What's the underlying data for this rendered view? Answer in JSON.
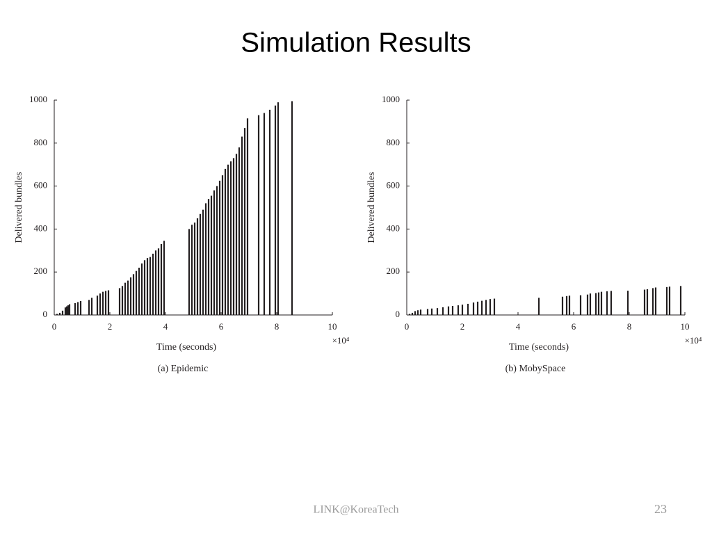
{
  "slide": {
    "title": "Simulation Results",
    "footer": "LINK@KoreaTech",
    "page_number": "23"
  },
  "chart_data": [
    {
      "type": "stem",
      "caption": "(a) Epidemic",
      "x_label": "Time (seconds)",
      "y_label": "Delivered bundles",
      "x_multiplier": "×10⁴",
      "color": "#231f20",
      "xlim": [
        0,
        10
      ],
      "ylim": [
        0,
        1000
      ],
      "xticks": [
        0,
        2,
        4,
        6,
        8,
        10
      ],
      "yticks": [
        0,
        200,
        400,
        600,
        800,
        1000
      ],
      "x": [
        0.1,
        0.2,
        0.3,
        0.4,
        0.45,
        0.5,
        0.55,
        0.75,
        0.85,
        0.95,
        1.25,
        1.35,
        1.55,
        1.65,
        1.75,
        1.85,
        1.95,
        2.35,
        2.45,
        2.55,
        2.65,
        2.75,
        2.85,
        2.95,
        3.05,
        3.15,
        3.25,
        3.35,
        3.45,
        3.55,
        3.65,
        3.75,
        3.85,
        3.95,
        4.85,
        4.95,
        5.05,
        5.15,
        5.25,
        5.35,
        5.45,
        5.55,
        5.65,
        5.75,
        5.85,
        5.95,
        6.05,
        6.15,
        6.25,
        6.35,
        6.45,
        6.55,
        6.65,
        6.75,
        6.85,
        6.95,
        7.35,
        7.55,
        7.75,
        7.95,
        8.05,
        8.55
      ],
      "values": [
        5,
        10,
        20,
        35,
        40,
        45,
        50,
        55,
        60,
        65,
        70,
        80,
        90,
        100,
        108,
        112,
        115,
        125,
        135,
        150,
        160,
        175,
        190,
        205,
        220,
        240,
        255,
        265,
        270,
        285,
        300,
        310,
        330,
        345,
        400,
        420,
        430,
        450,
        470,
        490,
        520,
        540,
        555,
        580,
        600,
        625,
        650,
        680,
        700,
        715,
        730,
        750,
        780,
        830,
        870,
        915,
        930,
        940,
        955,
        975,
        990,
        995
      ]
    },
    {
      "type": "stem",
      "caption": "(b) MobySpace",
      "x_label": "Time (seconds)",
      "y_label": "Delivered bundles",
      "x_multiplier": "×10⁴",
      "color": "#231f20",
      "xlim": [
        0,
        10
      ],
      "ylim": [
        0,
        1000
      ],
      "xticks": [
        0,
        2,
        4,
        6,
        8,
        10
      ],
      "yticks": [
        0,
        200,
        400,
        600,
        800,
        1000
      ],
      "x": [
        0.1,
        0.2,
        0.3,
        0.4,
        0.5,
        0.75,
        0.9,
        1.1,
        1.3,
        1.5,
        1.65,
        1.85,
        2.0,
        2.2,
        2.4,
        2.55,
        2.7,
        2.85,
        3.0,
        3.15,
        4.75,
        5.6,
        5.75,
        5.85,
        6.25,
        6.5,
        6.6,
        6.8,
        6.9,
        7.0,
        7.2,
        7.35,
        7.95,
        8.55,
        8.65,
        8.85,
        8.95,
        9.35,
        9.45,
        9.85
      ],
      "values": [
        5,
        10,
        18,
        22,
        25,
        28,
        30,
        32,
        36,
        40,
        42,
        45,
        48,
        52,
        58,
        62,
        66,
        70,
        74,
        76,
        80,
        85,
        88,
        90,
        92,
        95,
        100,
        102,
        105,
        108,
        110,
        112,
        113,
        118,
        120,
        125,
        128,
        130,
        132,
        135
      ]
    }
  ]
}
